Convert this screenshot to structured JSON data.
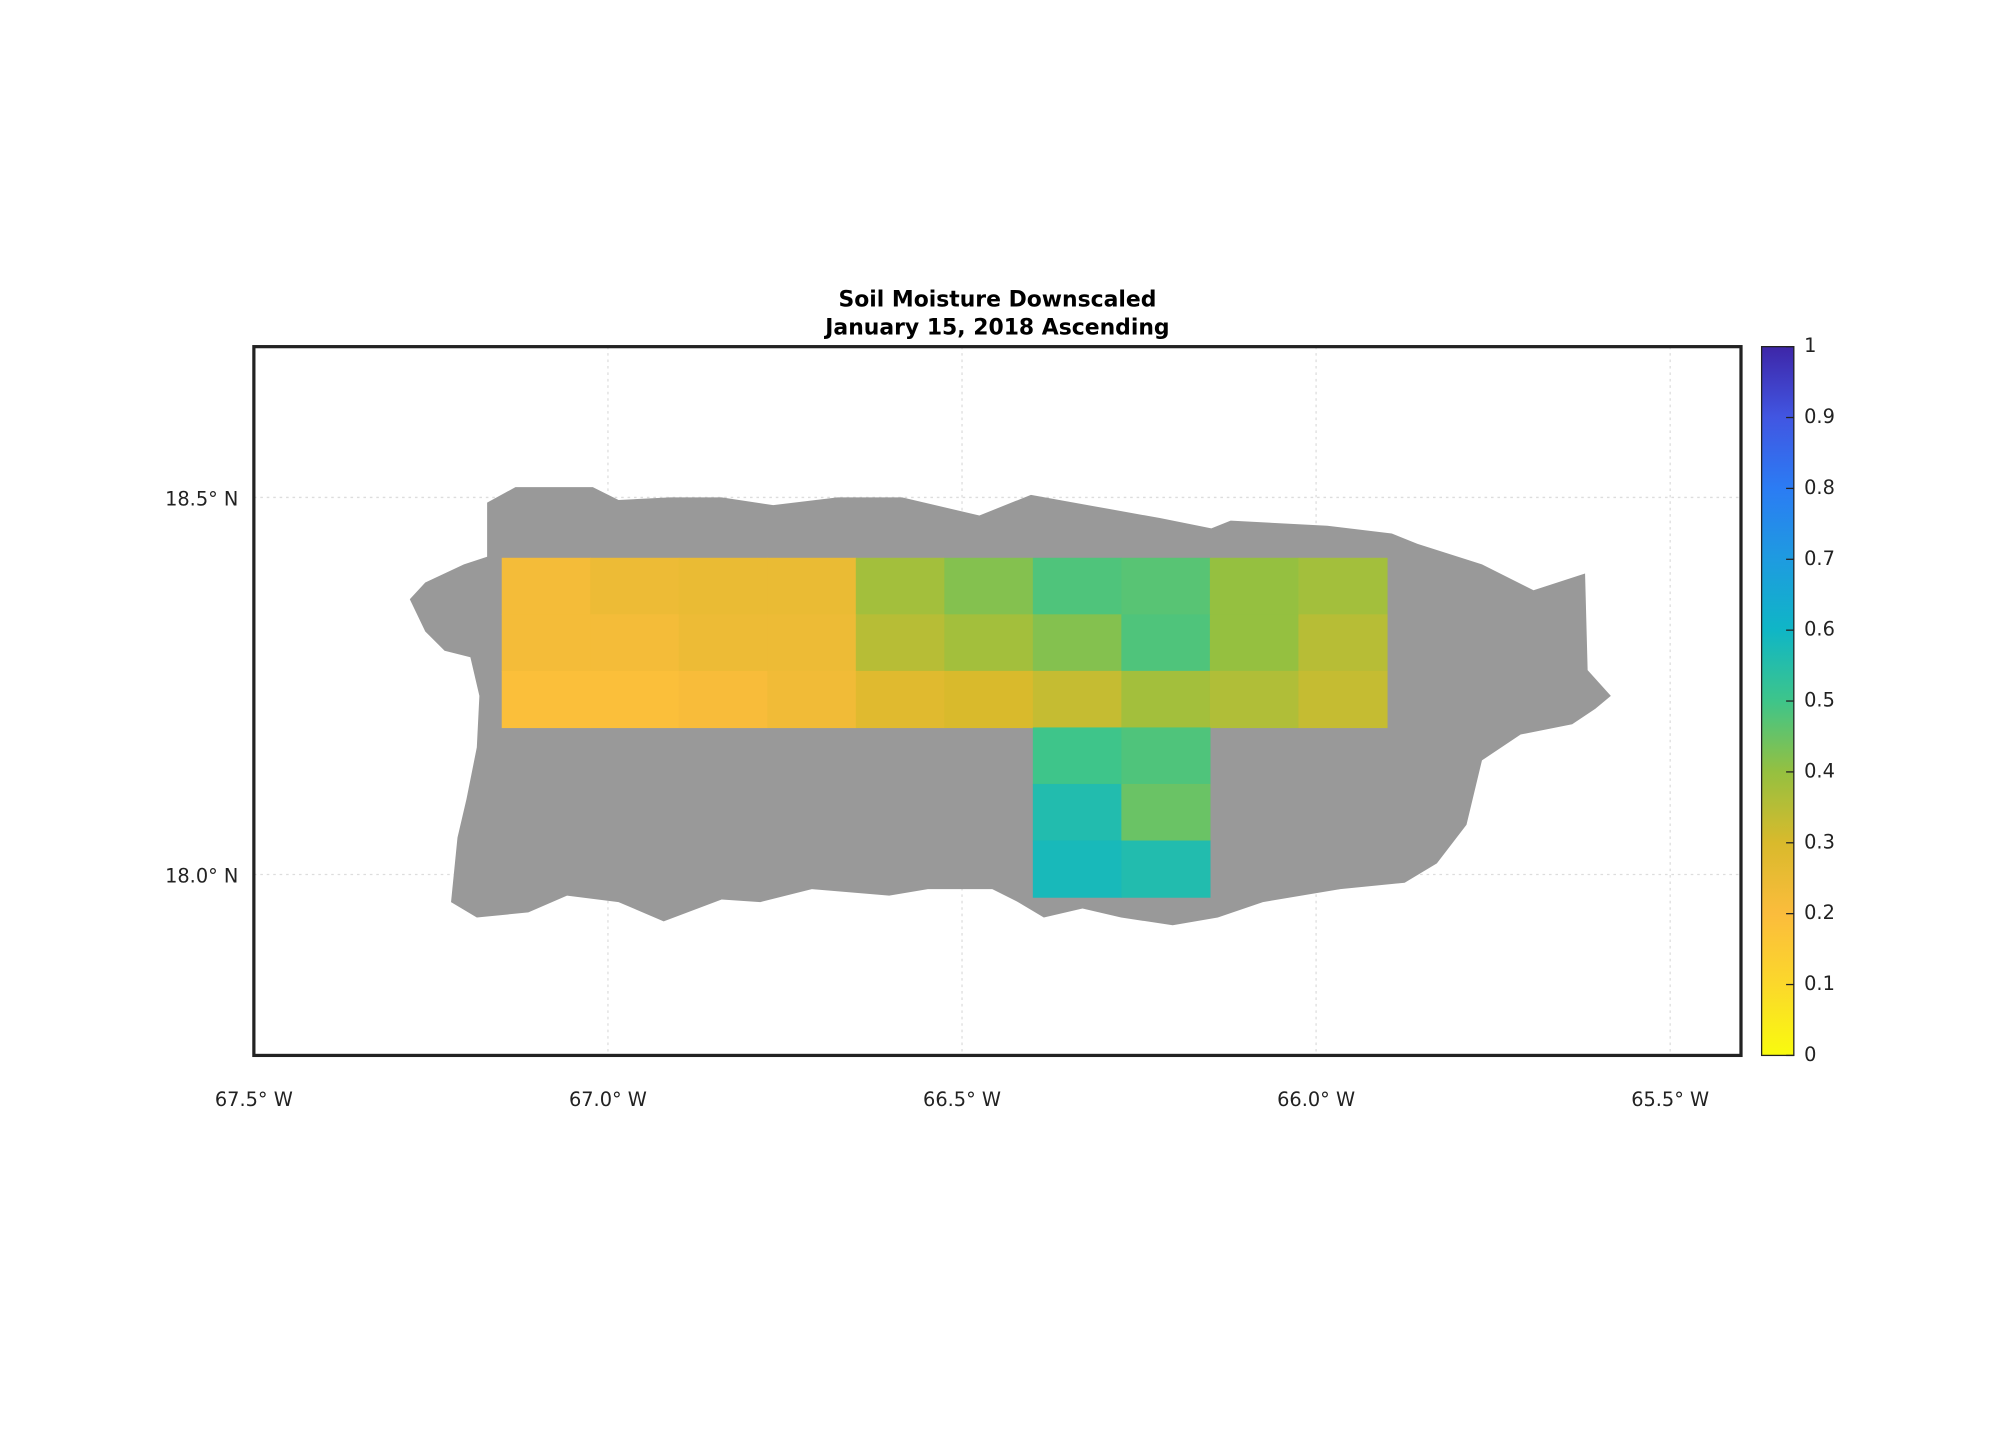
{
  "chart_data": {
    "type": "heatmap",
    "title": "Soil Moisture Downscaled",
    "subtitle": "January 15, 2018 Ascending",
    "x_edges": [
      -67.15,
      -67.025,
      -66.9,
      -66.775,
      -66.65,
      -66.525,
      -66.4,
      -66.275,
      -66.15,
      -66.025,
      -65.9
    ],
    "y_edges": [
      18.42,
      18.345,
      18.27,
      18.195,
      18.12,
      18.045,
      17.97
    ],
    "values": [
      [
        0.22,
        0.24,
        0.25,
        0.25,
        0.38,
        0.42,
        0.48,
        0.47,
        0.4,
        0.38
      ],
      [
        0.22,
        0.22,
        0.24,
        0.24,
        0.35,
        0.38,
        0.42,
        0.48,
        0.4,
        0.35
      ],
      [
        0.19,
        0.19,
        0.21,
        0.23,
        0.28,
        0.3,
        0.33,
        0.38,
        0.36,
        0.33
      ],
      [
        null,
        null,
        null,
        null,
        null,
        null,
        0.5,
        0.48,
        null,
        null
      ],
      [
        null,
        null,
        null,
        null,
        null,
        null,
        0.56,
        0.45,
        null,
        null
      ],
      [
        null,
        null,
        null,
        null,
        null,
        null,
        0.58,
        0.56,
        null,
        null
      ]
    ],
    "xlim": [
      -67.5,
      -65.4
    ],
    "ylim": [
      17.76,
      18.7
    ],
    "xticks": [
      {
        "value": -67.5,
        "label": "67.5° W"
      },
      {
        "value": -67.0,
        "label": "67.0° W"
      },
      {
        "value": -66.5,
        "label": "66.5° W"
      },
      {
        "value": -66.0,
        "label": "66.0° W"
      },
      {
        "value": -65.5,
        "label": "65.5° W"
      }
    ],
    "yticks": [
      {
        "value": 18.0,
        "label": "18.0° N"
      },
      {
        "value": 18.5,
        "label": "18.5° N"
      }
    ],
    "colorbar_lim": [
      0,
      1
    ],
    "colorbar_ticks": [
      0,
      0.1,
      0.2,
      0.3,
      0.4,
      0.5,
      0.6,
      0.7,
      0.8,
      0.9,
      1
    ],
    "colormap": [
      "#f9fb0e",
      "#fbd82b",
      "#fbbc3c",
      "#d9ba2c",
      "#95c040",
      "#3ec58a",
      "#0fb6c6",
      "#1e9be0",
      "#2b7cf4",
      "#4156e2",
      "#3e26a8"
    ],
    "land_color": "#999999",
    "grid": true
  }
}
